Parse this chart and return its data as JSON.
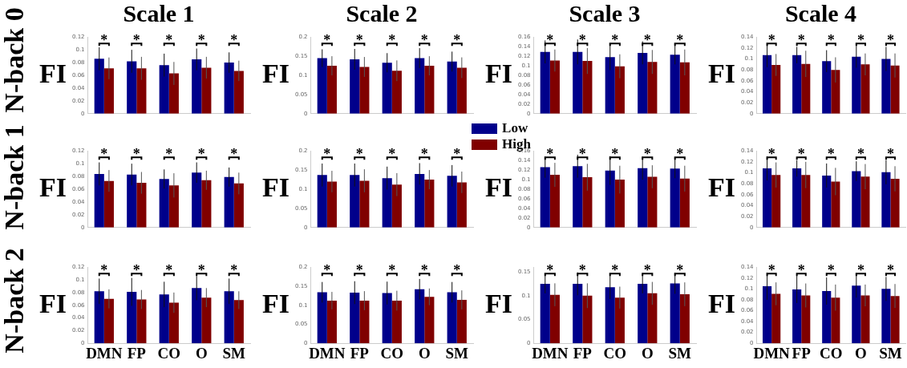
{
  "chart_data": [
    {
      "type": "bar",
      "title": "Scale 1",
      "ylabel": "FI",
      "categories": [
        null,
        null,
        null,
        null,
        null
      ],
      "ylim": [
        0,
        0.12
      ],
      "yticks": [
        0,
        0.02,
        0.04,
        0.06,
        0.08,
        0.1,
        0.12
      ],
      "grid": false,
      "tick_labels": "y",
      "series": [
        {
          "color": "#00008b",
          "values": [
            0.086,
            0.082,
            0.076,
            0.085,
            0.08
          ],
          "errors": [
            0.018,
            0.018,
            0.018,
            0.017,
            0.016
          ]
        },
        {
          "color": "#800000",
          "values": [
            0.071,
            0.071,
            0.063,
            0.072,
            0.067
          ],
          "errors": [
            0.017,
            0.018,
            0.018,
            0.017,
            0.016
          ]
        }
      ],
      "annotations": [
        "N-back 0",
        "*",
        "*",
        "*",
        "*",
        "*"
      ]
    },
    {
      "type": "bar",
      "title": "Scale 2",
      "ylabel": "FI",
      "categories": [
        null,
        null,
        null,
        null,
        null
      ],
      "ylim": [
        0,
        0.2
      ],
      "yticks": [
        0,
        0.05,
        0.1,
        0.15,
        0.2
      ],
      "grid": false,
      "tick_labels": "y",
      "legend": "bottom right",
      "series": [
        {
          "name": "Low",
          "color": "#00008b",
          "values": [
            0.145,
            0.142,
            0.133,
            0.145,
            0.136
          ],
          "errors": [
            0.023,
            0.027,
            0.025,
            0.026,
            0.026
          ]
        },
        {
          "name": "High",
          "color": "#800000",
          "values": [
            0.125,
            0.122,
            0.112,
            0.125,
            0.12
          ],
          "errors": [
            0.025,
            0.026,
            0.027,
            0.025,
            0.027
          ]
        }
      ],
      "annotations": [
        "*",
        "*",
        "*",
        "*",
        "*"
      ]
    },
    {
      "type": "bar",
      "title": "Scale 3",
      "ylabel": "FI",
      "categories": [
        null,
        null,
        null,
        null,
        null
      ],
      "ylim": [
        0,
        0.16
      ],
      "yticks": [
        0,
        0.02,
        0.04,
        0.06,
        0.08,
        0.1,
        0.12,
        0.14,
        0.16
      ],
      "grid": false,
      "tick_labels": "y",
      "series": [
        {
          "color": "#00008b",
          "values": [
            0.129,
            0.129,
            0.118,
            0.127,
            0.123
          ],
          "errors": [
            0.024,
            0.026,
            0.027,
            0.024,
            0.02
          ]
        },
        {
          "color": "#800000",
          "values": [
            0.111,
            0.11,
            0.099,
            0.108,
            0.107
          ],
          "errors": [
            0.023,
            0.027,
            0.025,
            0.025,
            0.027
          ]
        }
      ],
      "annotations": [
        "*",
        "*",
        "*",
        "*",
        "*"
      ]
    },
    {
      "type": "bar",
      "title": "Scale 4",
      "ylabel": "FI",
      "categories": [
        null,
        null,
        null,
        null,
        null
      ],
      "ylim": [
        0,
        0.14
      ],
      "yticks": [
        0,
        0.02,
        0.04,
        0.06,
        0.08,
        0.1,
        0.12,
        0.14
      ],
      "grid": false,
      "tick_labels": "y",
      "series": [
        {
          "color": "#00008b",
          "values": [
            0.107,
            0.107,
            0.096,
            0.104,
            0.1
          ],
          "errors": [
            0.022,
            0.015,
            0.02,
            0.02,
            0.022
          ]
        },
        {
          "color": "#800000",
          "values": [
            0.089,
            0.091,
            0.08,
            0.09,
            0.088
          ],
          "errors": [
            0.02,
            0.024,
            0.023,
            0.02,
            0.022
          ]
        }
      ],
      "annotations": [
        "*",
        "*",
        "*",
        "*",
        "*"
      ]
    },
    {
      "type": "bar",
      "ylabel": "FI",
      "categories": [
        null,
        null,
        null,
        null,
        null
      ],
      "ylim": [
        0,
        0.12
      ],
      "yticks": [
        0,
        0.02,
        0.04,
        0.06,
        0.08,
        0.1,
        0.12
      ],
      "grid": false,
      "tick_labels": "y",
      "series": [
        {
          "color": "#00008b",
          "values": [
            0.084,
            0.083,
            0.076,
            0.086,
            0.079
          ],
          "errors": [
            0.018,
            0.017,
            0.015,
            0.016,
            0.015
          ]
        },
        {
          "color": "#800000",
          "values": [
            0.073,
            0.07,
            0.066,
            0.074,
            0.069
          ],
          "errors": [
            0.017,
            0.017,
            0.019,
            0.015,
            0.017
          ]
        }
      ],
      "annotations": [
        "N-back 1",
        "*",
        "*",
        "*",
        "*",
        "*"
      ]
    },
    {
      "type": "bar",
      "ylabel": "FI",
      "categories": [
        null,
        null,
        null,
        null,
        null
      ],
      "ylim": [
        0,
        0.2
      ],
      "yticks": [
        0,
        0.05,
        0.1,
        0.15,
        0.2
      ],
      "grid": false,
      "tick_labels": "y",
      "series": [
        {
          "color": "#00008b",
          "values": [
            0.137,
            0.137,
            0.129,
            0.14,
            0.135
          ],
          "errors": [
            0.03,
            0.03,
            0.03,
            0.028,
            0.028
          ]
        },
        {
          "color": "#800000",
          "values": [
            0.12,
            0.122,
            0.112,
            0.125,
            0.118
          ],
          "errors": [
            0.028,
            0.03,
            0.03,
            0.025,
            0.028
          ]
        }
      ],
      "annotations": [
        "*",
        "*",
        "*",
        "*",
        "*"
      ]
    },
    {
      "type": "bar",
      "ylabel": "FI",
      "categories": [
        null,
        null,
        null,
        null,
        null
      ],
      "ylim": [
        0,
        0.16
      ],
      "yticks": [
        0,
        0.02,
        0.04,
        0.06,
        0.08,
        0.1,
        0.12,
        0.14,
        0.16
      ],
      "grid": false,
      "tick_labels": "y",
      "series": [
        {
          "color": "#00008b",
          "values": [
            0.126,
            0.128,
            0.119,
            0.124,
            0.123
          ],
          "errors": [
            0.022,
            0.024,
            0.03,
            0.024,
            0.02
          ]
        },
        {
          "color": "#800000",
          "values": [
            0.11,
            0.105,
            0.1,
            0.106,
            0.102
          ],
          "errors": [
            0.025,
            0.028,
            0.029,
            0.024,
            0.027
          ]
        }
      ],
      "annotations": [
        "*",
        "*",
        "*",
        "*",
        "*"
      ]
    },
    {
      "type": "bar",
      "ylabel": "FI",
      "categories": [
        null,
        null,
        null,
        null,
        null
      ],
      "ylim": [
        0,
        0.14
      ],
      "yticks": [
        0,
        0.02,
        0.04,
        0.06,
        0.08,
        0.1,
        0.12,
        0.14
      ],
      "grid": false,
      "tick_labels": "y",
      "series": [
        {
          "color": "#00008b",
          "values": [
            0.108,
            0.108,
            0.095,
            0.103,
            0.101
          ],
          "errors": [
            0.022,
            0.015,
            0.022,
            0.018,
            0.022
          ]
        },
        {
          "color": "#800000",
          "values": [
            0.096,
            0.096,
            0.084,
            0.093,
            0.089
          ],
          "errors": [
            0.023,
            0.024,
            0.025,
            0.023,
            0.023
          ]
        }
      ],
      "annotations": [
        "*",
        "*",
        "*",
        "*",
        "*"
      ]
    },
    {
      "type": "bar",
      "ylabel": "FI",
      "categories": [
        "DMN",
        "FP",
        "CO",
        "O",
        "SM"
      ],
      "ylim": [
        0,
        0.12
      ],
      "yticks": [
        0,
        0.02,
        0.04,
        0.06,
        0.08,
        0.1,
        0.12
      ],
      "grid": false,
      "series": [
        {
          "color": "#00008b",
          "values": [
            0.082,
            0.081,
            0.077,
            0.087,
            0.082
          ],
          "errors": [
            0.02,
            0.022,
            0.02,
            0.019,
            0.02
          ]
        },
        {
          "color": "#800000",
          "values": [
            0.07,
            0.069,
            0.064,
            0.072,
            0.068
          ],
          "errors": [
            0.015,
            0.015,
            0.016,
            0.015,
            0.014
          ]
        }
      ],
      "annotations": [
        "N-back 2",
        "*",
        "*",
        "*",
        "*",
        "*"
      ]
    },
    {
      "type": "bar",
      "ylabel": "FI",
      "categories": [
        "DMN",
        "FP",
        "CO",
        "O",
        "SM"
      ],
      "ylim": [
        0,
        0.2
      ],
      "yticks": [
        0,
        0.05,
        0.1,
        0.15,
        0.2
      ],
      "grid": false,
      "series": [
        {
          "color": "#00008b",
          "values": [
            0.134,
            0.133,
            0.132,
            0.142,
            0.134
          ],
          "errors": [
            0.027,
            0.03,
            0.03,
            0.027,
            0.027
          ]
        },
        {
          "color": "#800000",
          "values": [
            0.112,
            0.112,
            0.112,
            0.122,
            0.114
          ],
          "errors": [
            0.023,
            0.025,
            0.026,
            0.022,
            0.025
          ]
        }
      ],
      "annotations": [
        "*",
        "*",
        "*",
        "*",
        "*"
      ]
    },
    {
      "type": "bar",
      "ylabel": "FI",
      "categories": [
        "DMN",
        "FP",
        "CO",
        "O",
        "SM"
      ],
      "ylim": [
        0,
        0.16
      ],
      "yticks": [
        0,
        0.05,
        0.1,
        0.15
      ],
      "grid": false,
      "series": [
        {
          "color": "#00008b",
          "values": [
            0.125,
            0.125,
            0.118,
            0.125,
            0.126
          ],
          "errors": [
            0.02,
            0.024,
            0.025,
            0.02,
            0.022
          ]
        },
        {
          "color": "#800000",
          "values": [
            0.102,
            0.1,
            0.096,
            0.105,
            0.103
          ],
          "errors": [
            0.024,
            0.026,
            0.023,
            0.024,
            0.025
          ]
        }
      ],
      "annotations": [
        "*",
        "*",
        "*",
        "*",
        "*"
      ]
    },
    {
      "type": "bar",
      "ylabel": "FI",
      "categories": [
        "DMN",
        "FP",
        "CO",
        "O",
        "SM"
      ],
      "ylim": [
        0,
        0.14
      ],
      "yticks": [
        0,
        0.02,
        0.04,
        0.06,
        0.08,
        0.1,
        0.12,
        0.14
      ],
      "grid": false,
      "series": [
        {
          "color": "#00008b",
          "values": [
            0.105,
            0.099,
            0.096,
            0.106,
            0.1
          ],
          "errors": [
            0.025,
            0.025,
            0.025,
            0.022,
            0.022
          ]
        },
        {
          "color": "#800000",
          "values": [
            0.091,
            0.088,
            0.084,
            0.088,
            0.087
          ],
          "errors": [
            0.021,
            0.022,
            0.024,
            0.02,
            0.022
          ]
        }
      ],
      "annotations": [
        "*",
        "*",
        "*",
        "*",
        "*"
      ]
    }
  ]
}
